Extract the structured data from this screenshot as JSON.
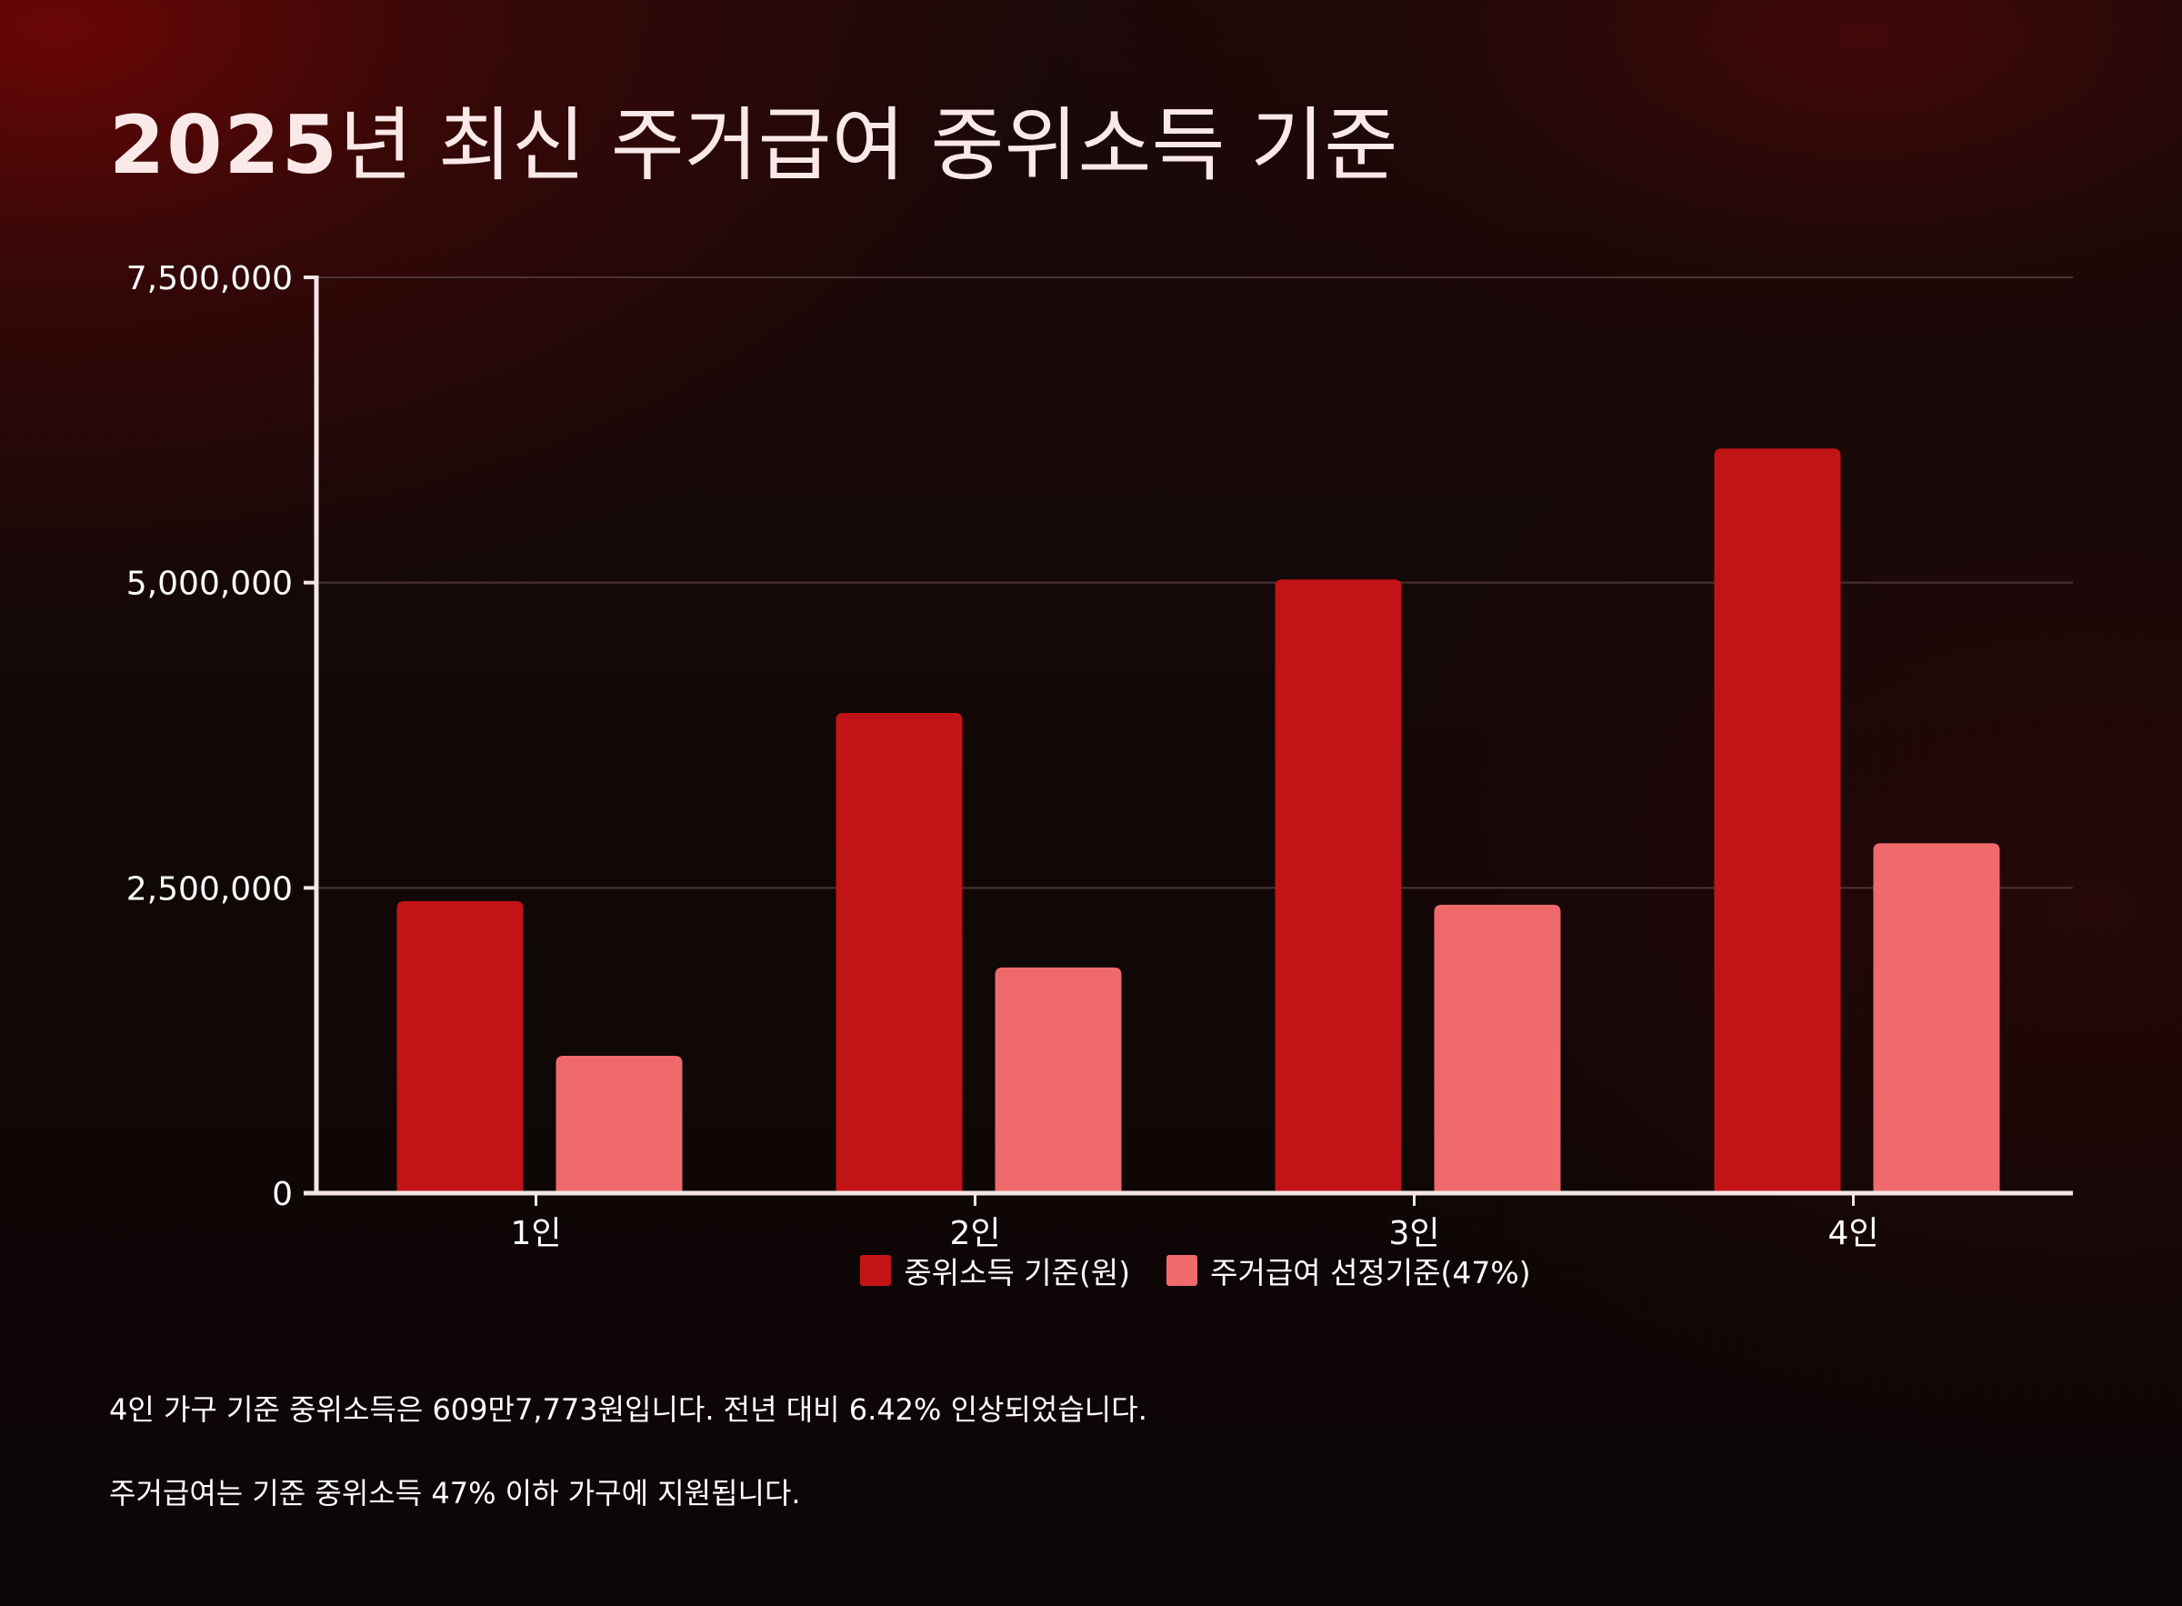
{
  "title_year": "2025",
  "title_rest": "년 최신 주거급여 중위소득 기준",
  "chart_data": {
    "type": "bar",
    "title": "2025년 최신 주거급여 중위소득 기준",
    "categories": [
      "1인",
      "2인",
      "3인",
      "4인"
    ],
    "series": [
      {
        "name": "중위소득 기준(원)",
        "color": "#c21416",
        "values": [
          2392013,
          3932658,
          5025353,
          6097773
        ]
      },
      {
        "name": "주거급여 선정기준(47%)",
        "color": "#f06a6b",
        "values": [
          1124246,
          1848349,
          2361916,
          2865953
        ]
      }
    ],
    "xlabel": "",
    "ylabel": "",
    "ylim": [
      0,
      7500000
    ],
    "yticks": [
      0,
      2500000,
      5000000,
      7500000
    ],
    "ytick_labels": [
      "0",
      "2,500,000",
      "5,000,000",
      "7,500,000"
    ],
    "grid": true,
    "legend_position": "bottom"
  },
  "notes": [
    "4인 가구 기준 중위소득은 609만7,773원입니다. 전년 대비 6.42% 인상되었습니다.",
    "주거급여는 기준 중위소득 47% 이하 가구에 지원됩니다."
  ],
  "colors": {
    "axis": "#f5e6e6",
    "grid": "#4a3434",
    "text": "#ffffff"
  }
}
